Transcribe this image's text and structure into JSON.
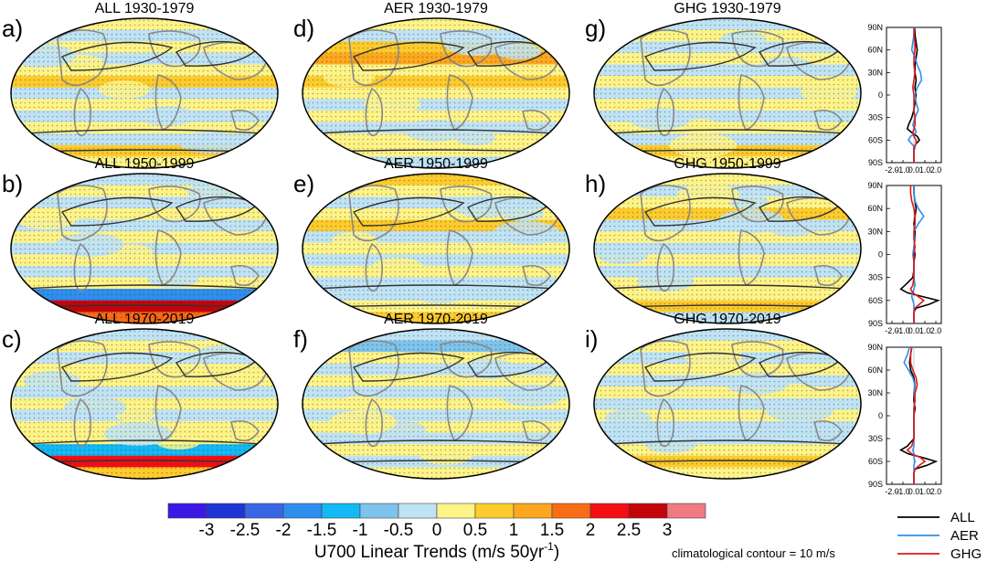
{
  "chart_data": {
    "type": "heatmap",
    "variable": "U700 Linear Trends",
    "units": "m/s 50yr",
    "panels": [
      {
        "label": "a)",
        "title": "ALL 1930-1979",
        "forcing": "ALL",
        "period": "1930-1979"
      },
      {
        "label": "b)",
        "title": "ALL 1950-1999",
        "forcing": "ALL",
        "period": "1950-1999"
      },
      {
        "label": "c)",
        "title": "ALL 1970-2019",
        "forcing": "ALL",
        "period": "1970-2019"
      },
      {
        "label": "d)",
        "title": "AER 1930-1979",
        "forcing": "AER",
        "period": "1930-1979"
      },
      {
        "label": "e)",
        "title": "AER 1950-1999",
        "forcing": "AER",
        "period": "1950-1999"
      },
      {
        "label": "f)",
        "title": "AER 1970-2019",
        "forcing": "AER",
        "period": "1970-2019"
      },
      {
        "label": "g)",
        "title": "GHG 1930-1979",
        "forcing": "GHG",
        "period": "1930-1979"
      },
      {
        "label": "h)",
        "title": "GHG 1950-1999",
        "forcing": "GHG",
        "period": "1950-1999"
      },
      {
        "label": "i)",
        "title": "GHG 1970-2019",
        "forcing": "GHG",
        "period": "1970-2019"
      }
    ],
    "colorbar": {
      "ticks": [
        "-3",
        "-2.5",
        "-2",
        "-1.5",
        "-1",
        "-0.5",
        "0",
        "0.5",
        "1",
        "1.5",
        "2",
        "2.5",
        "3"
      ],
      "colors": [
        "#3a18e6",
        "#1c35d4",
        "#3a66e6",
        "#2e8ef0",
        "#12b9f4",
        "#7ec3ec",
        "#bfe3f5",
        "#fdf387",
        "#fdcb2b",
        "#fca71e",
        "#f86c15",
        "#f40f12",
        "#c5030a",
        "#f07a82"
      ],
      "title_main": "U700 Linear Trends (m/s 50yr",
      "title_sup": "-1",
      "title_end": ")"
    },
    "note": "climatological contour = 10 m/s",
    "profiles": {
      "type": "line",
      "ylabels": [
        "90N",
        "60N",
        "30N",
        "0",
        "30S",
        "60S",
        "90S"
      ],
      "xlabels": [
        "-2.0",
        "-1.0",
        "0.0",
        "1.0",
        "2.0"
      ],
      "xlim": [
        -2.5,
        2.5
      ],
      "ylim": [
        -90,
        90
      ],
      "series_colors": {
        "ALL": "#000000",
        "AER": "#2f8fe8",
        "GHG": "#e01818"
      },
      "legend": [
        "ALL",
        "AER",
        "GHG"
      ],
      "lat": [
        90,
        80,
        70,
        60,
        50,
        40,
        30,
        20,
        10,
        0,
        -10,
        -20,
        -30,
        -40,
        -45,
        -50,
        -55,
        -60,
        -65,
        -70,
        -75,
        -80,
        -90
      ],
      "panels": [
        {
          "period": "1930-1979",
          "series": [
            {
              "name": "ALL",
              "values": [
                0.1,
                0.1,
                0.2,
                0.3,
                0.2,
                0.1,
                0.1,
                0.2,
                0.1,
                0.2,
                0.1,
                0.0,
                -0.2,
                -0.5,
                -0.6,
                -0.2,
                0.3,
                0.5,
                0.2,
                0.0,
                0.0,
                0.0,
                0.0
              ]
            },
            {
              "name": "AER",
              "values": [
                0.1,
                0.0,
                -0.1,
                -0.2,
                0.1,
                0.3,
                0.6,
                0.7,
                0.3,
                0.1,
                0.2,
                0.4,
                0.1,
                -0.1,
                0.1,
                0.2,
                -0.3,
                -0.5,
                -0.2,
                0.1,
                0.0,
                0.0,
                0.0
              ]
            },
            {
              "name": "GHG",
              "values": [
                0.0,
                0.0,
                0.1,
                0.1,
                0.0,
                0.0,
                0.1,
                0.0,
                -0.1,
                0.0,
                0.0,
                0.0,
                0.1,
                0.1,
                0.0,
                -0.1,
                0.0,
                0.2,
                0.2,
                0.0,
                0.0,
                0.0,
                0.0
              ]
            }
          ]
        },
        {
          "period": "1950-1999",
          "series": [
            {
              "name": "ALL",
              "values": [
                0.0,
                0.0,
                0.1,
                0.2,
                0.1,
                0.0,
                0.1,
                0.1,
                0.0,
                0.1,
                0.0,
                0.0,
                -0.1,
                -0.8,
                -1.2,
                -0.6,
                0.8,
                2.2,
                1.4,
                0.2,
                0.0,
                0.0,
                0.0
              ]
            },
            {
              "name": "AER",
              "values": [
                0.0,
                0.0,
                0.1,
                0.4,
                0.9,
                0.4,
                0.0,
                0.1,
                0.0,
                -0.1,
                0.0,
                0.0,
                0.0,
                0.1,
                0.0,
                -0.1,
                -0.2,
                -0.1,
                0.0,
                0.0,
                0.0,
                0.0,
                0.0
              ]
            },
            {
              "name": "GHG",
              "values": [
                -0.3,
                -0.3,
                -0.2,
                0.0,
                0.1,
                0.1,
                0.0,
                0.0,
                0.1,
                0.0,
                0.0,
                0.0,
                0.0,
                -0.1,
                -0.3,
                -0.1,
                0.4,
                0.9,
                0.5,
                0.1,
                0.0,
                0.0,
                0.0
              ]
            }
          ]
        },
        {
          "period": "1970-2019",
          "series": [
            {
              "name": "ALL",
              "values": [
                -0.2,
                -0.3,
                -0.4,
                -0.3,
                0.0,
                0.1,
                0.0,
                0.0,
                0.1,
                0.0,
                0.0,
                0.0,
                0.0,
                -0.6,
                -1.2,
                -0.5,
                0.8,
                2.0,
                1.2,
                0.1,
                0.0,
                0.0,
                0.0
              ]
            },
            {
              "name": "AER",
              "values": [
                -0.4,
                -0.6,
                -0.9,
                -0.5,
                -0.1,
                0.1,
                0.0,
                0.1,
                0.0,
                0.0,
                0.0,
                0.0,
                0.0,
                0.0,
                -0.1,
                0.0,
                0.0,
                0.1,
                0.0,
                0.0,
                0.0,
                0.0,
                0.0
              ]
            },
            {
              "name": "GHG",
              "values": [
                -0.2,
                -0.3,
                -0.3,
                -0.1,
                0.2,
                0.3,
                0.1,
                0.1,
                0.0,
                0.0,
                0.0,
                0.0,
                0.0,
                -0.2,
                -0.6,
                -0.2,
                0.6,
                1.0,
                0.5,
                0.1,
                0.0,
                0.0,
                0.0
              ]
            }
          ]
        }
      ]
    }
  }
}
